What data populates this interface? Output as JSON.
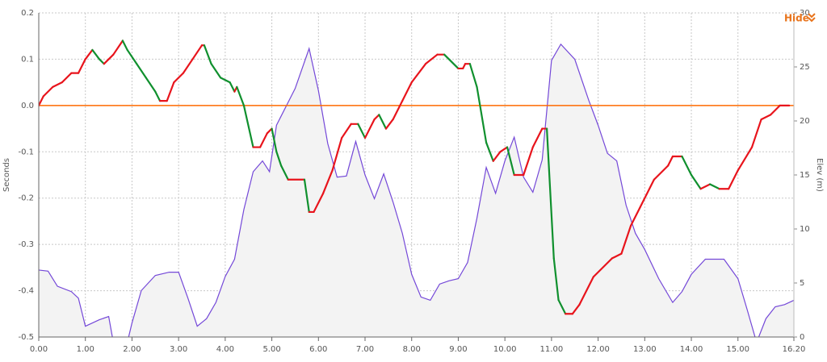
{
  "chart_data": {
    "type": "line",
    "ylabel": "Seconds",
    "y2label": "Elev (m)",
    "xlim": [
      0,
      16.2
    ],
    "xticks": [
      {
        "value": 0,
        "label": "0.00"
      },
      {
        "value": 1,
        "label": "1.00"
      },
      {
        "value": 2,
        "label": "2.00"
      },
      {
        "value": 3,
        "label": "3.00"
      },
      {
        "value": 4,
        "label": "4.00"
      },
      {
        "value": 5,
        "label": "5.00"
      },
      {
        "value": 6,
        "label": "6.00"
      },
      {
        "value": 7,
        "label": "7.00"
      },
      {
        "value": 8,
        "label": "8.00"
      },
      {
        "value": 9,
        "label": "9.00"
      },
      {
        "value": 10,
        "label": "10.00"
      },
      {
        "value": 11,
        "label": "11.00"
      },
      {
        "value": 12,
        "label": "12.00"
      },
      {
        "value": 13,
        "label": "13.00"
      },
      {
        "value": 14,
        "label": "14.00"
      },
      {
        "value": 15,
        "label": "15.00"
      },
      {
        "value": 16.2,
        "label": "16.20"
      }
    ],
    "ylim": [
      -0.5,
      0.2
    ],
    "yticks": [
      -0.5,
      -0.4,
      -0.3,
      -0.2,
      -0.1,
      {
        "value": 0,
        "label": "0.0"
      },
      0.1,
      0.2
    ],
    "y2lim": [
      0,
      30
    ],
    "y2ticks": [
      0,
      5,
      10,
      15,
      20,
      25,
      30
    ],
    "grid": true,
    "reference_line": {
      "value": 0,
      "color": "#ff6a00"
    },
    "series": [
      {
        "up_color": "#e8141c",
        "down_color": "#10902e",
        "x": [
          0,
          0.1,
          0.3,
          0.5,
          0.7,
          0.85,
          1.0,
          1.15,
          1.3,
          1.4,
          1.5,
          1.6,
          1.8,
          1.9,
          2.1,
          2.3,
          2.5,
          2.6,
          2.75,
          2.9,
          3.1,
          3.3,
          3.5,
          3.55,
          3.7,
          3.9,
          4.1,
          4.2,
          4.25,
          4.4,
          4.6,
          4.75,
          4.9,
          5.0,
          5.1,
          5.2,
          5.35,
          5.7,
          5.8,
          5.9,
          6.1,
          6.3,
          6.5,
          6.7,
          6.85,
          7.0,
          7.2,
          7.3,
          7.45,
          7.6,
          7.8,
          8.0,
          8.3,
          8.55,
          8.7,
          9.0,
          9.1,
          9.15,
          9.25,
          9.4,
          9.6,
          9.75,
          9.9,
          10.05,
          10.2,
          10.4,
          10.6,
          10.8,
          10.9,
          11.05,
          11.15,
          11.3,
          11.45,
          11.6,
          11.9,
          12.3,
          12.5,
          12.7,
          12.9,
          13.2,
          13.5,
          13.6,
          13.8,
          14.0,
          14.2,
          14.4,
          14.6,
          14.8,
          15.0,
          15.3,
          15.5,
          15.7,
          15.9,
          16.1
        ],
        "values": [
          0,
          0.02,
          0.04,
          0.05,
          0.07,
          0.07,
          0.1,
          0.12,
          0.1,
          0.09,
          0.1,
          0.11,
          0.14,
          0.12,
          0.09,
          0.06,
          0.03,
          0.01,
          0.01,
          0.05,
          0.07,
          0.1,
          0.13,
          0.13,
          0.09,
          0.06,
          0.05,
          0.03,
          0.04,
          0,
          -0.09,
          -0.09,
          -0.06,
          -0.05,
          -0.1,
          -0.13,
          -0.16,
          -0.16,
          -0.23,
          -0.23,
          -0.19,
          -0.14,
          -0.07,
          -0.04,
          -0.04,
          -0.07,
          -0.03,
          -0.02,
          -0.05,
          -0.03,
          0.01,
          0.05,
          0.09,
          0.11,
          0.11,
          0.08,
          0.08,
          0.09,
          0.09,
          0.04,
          -0.08,
          -0.12,
          -0.1,
          -0.09,
          -0.15,
          -0.15,
          -0.09,
          -0.05,
          -0.05,
          -0.33,
          -0.42,
          -0.45,
          -0.45,
          -0.43,
          -0.37,
          -0.33,
          -0.32,
          -0.26,
          -0.22,
          -0.16,
          -0.13,
          -0.11,
          -0.11,
          -0.15,
          -0.18,
          -0.17,
          -0.18,
          -0.18,
          -0.14,
          -0.09,
          -0.03,
          -0.02,
          0,
          0
        ]
      },
      {
        "axis": "y2",
        "color": "#7448d8",
        "fill": "#f3f3f3",
        "x": [
          0,
          0.2,
          0.4,
          0.7,
          0.85,
          1.0,
          1.1,
          1.3,
          1.5,
          1.6,
          1.9,
          2.0,
          2.2,
          2.5,
          2.8,
          3.0,
          3.2,
          3.4,
          3.6,
          3.8,
          4.0,
          4.2,
          4.4,
          4.6,
          4.8,
          4.95,
          5.1,
          5.3,
          5.5,
          5.8,
          6.0,
          6.2,
          6.4,
          6.6,
          6.8,
          7.0,
          7.2,
          7.4,
          7.6,
          7.8,
          8.0,
          8.2,
          8.4,
          8.6,
          8.8,
          9.0,
          9.2,
          9.4,
          9.6,
          9.8,
          10.0,
          10.2,
          10.4,
          10.6,
          10.8,
          11.0,
          11.2,
          11.5,
          11.8,
          12.0,
          12.2,
          12.4,
          12.6,
          12.8,
          13.0,
          13.3,
          13.6,
          13.8,
          14.0,
          14.3,
          14.7,
          15.0,
          15.2,
          15.4,
          15.6,
          15.8,
          16.0,
          16.2
        ],
        "values": [
          6.2,
          6.1,
          4.7,
          4.2,
          3.6,
          1.0,
          1.2,
          1.6,
          1.9,
          -0.5,
          -0.5,
          1.3,
          4.3,
          5.7,
          6.0,
          6.0,
          3.6,
          1.0,
          1.7,
          3.2,
          5.6,
          7.2,
          11.8,
          15.3,
          16.3,
          15.3,
          19.6,
          21.3,
          23.0,
          26.7,
          22.8,
          17.9,
          14.8,
          14.9,
          18.1,
          15.0,
          12.8,
          15.1,
          12.5,
          9.6,
          5.8,
          3.7,
          3.4,
          4.9,
          5.2,
          5.4,
          6.9,
          11.0,
          15.7,
          13.3,
          16.3,
          18.5,
          14.8,
          13.4,
          16.4,
          25.6,
          27.1,
          25.7,
          21.9,
          19.6,
          17.0,
          16.3,
          12.2,
          9.6,
          8.1,
          5.4,
          3.2,
          4.2,
          5.8,
          7.2,
          7.2,
          5.4,
          2.5,
          -0.5,
          1.7,
          2.8,
          3.0,
          3.4
        ]
      }
    ]
  },
  "controls": {
    "hide": "Hide"
  }
}
